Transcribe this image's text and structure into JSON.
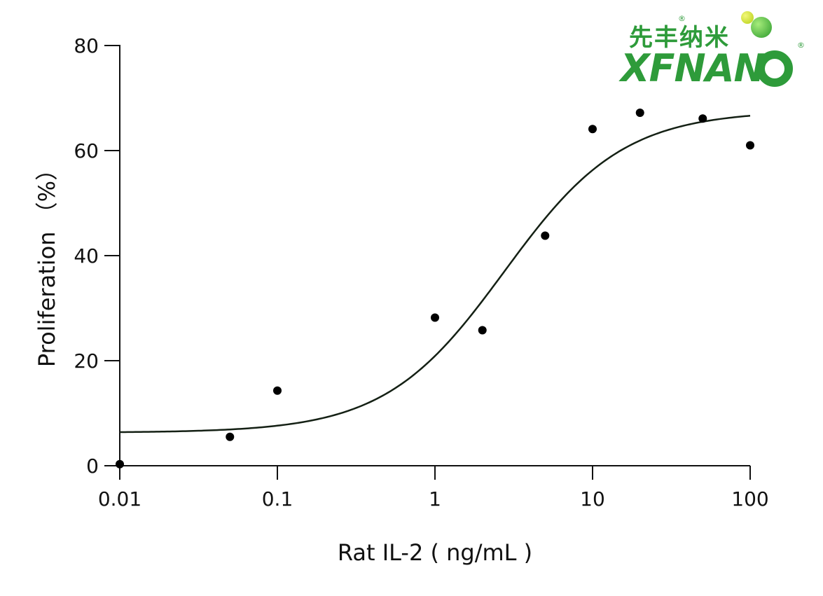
{
  "chart_data": {
    "type": "scatter",
    "xlabel": "Rat IL-2 ( ng/mL )",
    "ylabel": "Proliferation （%）",
    "x_scale": "log",
    "xlim": [
      0.01,
      100
    ],
    "ylim": [
      0,
      80
    ],
    "xticks": [
      0.01,
      0.1,
      1,
      10,
      100
    ],
    "xtick_labels": [
      "0.01",
      "0.1",
      "1",
      "10",
      "100"
    ],
    "yticks": [
      0,
      20,
      40,
      60,
      80
    ],
    "ytick_labels": [
      "0",
      "20",
      "40",
      "60",
      "80"
    ],
    "grid": false,
    "series": [
      {
        "type": "scatter",
        "color": "#000000",
        "x": [
          0.01,
          0.05,
          0.1,
          1,
          2,
          5,
          10,
          20,
          50,
          100
        ],
        "y": [
          0.3,
          5.5,
          14.3,
          28.2,
          25.8,
          43.8,
          64.1,
          67.2,
          66.1,
          61.0
        ]
      },
      {
        "type": "line",
        "color": "#142014",
        "fit": {
          "model": "four-parameter logistic",
          "bottom": 6.3,
          "top": 67.6,
          "ec50": 2.75,
          "hill": 1.15
        }
      }
    ]
  },
  "logo": {
    "chinese_text": "先丰纳米",
    "latin_text": "XFNAN",
    "registered_mark": "®",
    "primary_color": "#2e9b3a",
    "accent_yellow": "#c7dc2a",
    "accent_green": "#5cc53f"
  }
}
